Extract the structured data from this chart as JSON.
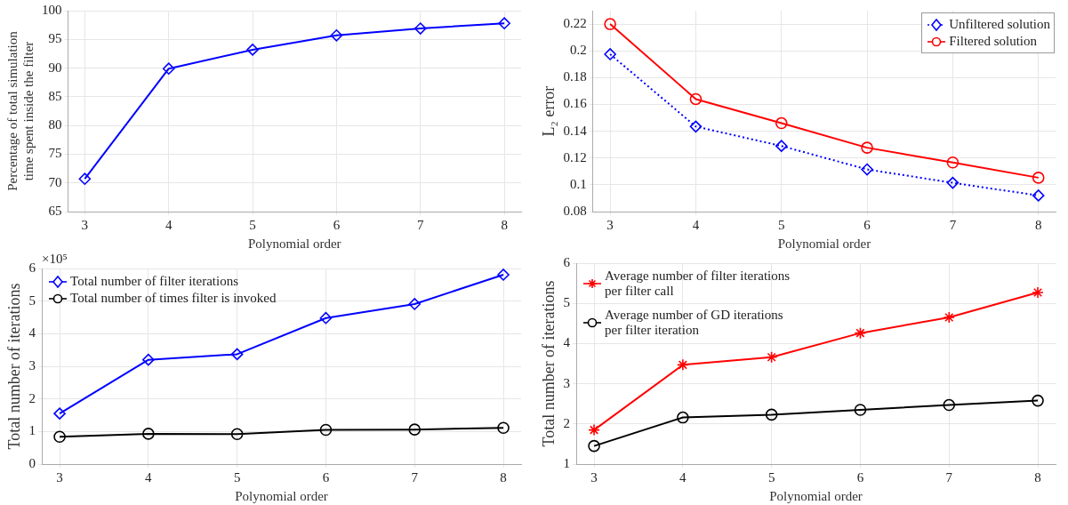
{
  "chart_data": [
    {
      "type": "line",
      "xlabel": "Polynomial order",
      "ylabel": "Percentage of total simulation\ntime spent inside the filter",
      "x": [
        3,
        4,
        5,
        6,
        7,
        8
      ],
      "xlim": [
        2.8,
        8.2
      ],
      "xticks": [
        3,
        4,
        5,
        6,
        7,
        8
      ],
      "ylim": [
        65,
        100
      ],
      "yticks": [
        65,
        70,
        75,
        80,
        85,
        90,
        95,
        100
      ],
      "grid": true,
      "legend": false,
      "marker": "diamond",
      "series": [
        {
          "color": "#0000ff",
          "values": [
            70.7,
            89.9,
            93.2,
            95.7,
            96.9,
            97.8
          ]
        }
      ]
    },
    {
      "type": "line",
      "xlabel": "Polynomial order",
      "ylabel": "L₂ error",
      "x": [
        3,
        4,
        5,
        6,
        7,
        8
      ],
      "xlim": [
        2.8,
        8.2
      ],
      "xticks": [
        3,
        4,
        5,
        6,
        7,
        8
      ],
      "ylim": [
        0.08,
        0.23
      ],
      "yticks": [
        0.08,
        0.1,
        0.12,
        0.14,
        0.16,
        0.18,
        0.2,
        0.22
      ],
      "grid": true,
      "legend": "top right",
      "series": [
        {
          "name": "Unfiltered solution",
          "color": "#0000ff",
          "marker": "diamond",
          "line_style": "dotted",
          "values": [
            0.1975,
            0.1435,
            0.129,
            0.1115,
            0.1015,
            0.092
          ]
        },
        {
          "name": "Filtered solution",
          "color": "#ff0000",
          "marker": "circle",
          "line_style": "solid",
          "values": [
            0.22,
            0.164,
            0.146,
            0.1277,
            0.1167,
            0.1053
          ]
        }
      ]
    },
    {
      "type": "line",
      "xlabel": "Polynomial order",
      "ylabel": "Total number of iterations",
      "annotations": [
        "×10⁵"
      ],
      "x": [
        3,
        4,
        5,
        6,
        7,
        8
      ],
      "xlim": [
        2.8,
        8.2
      ],
      "xticks": [
        3,
        4,
        5,
        6,
        7,
        8
      ],
      "ylim": [
        0,
        6
      ],
      "yticks": [
        0,
        1,
        2,
        3,
        4,
        5,
        6
      ],
      "grid": true,
      "legend": "top left",
      "series": [
        {
          "name": "Total number of filter iterations",
          "color": "#0000ff",
          "marker": "diamond",
          "values": [
            1.55,
            3.2,
            3.37,
            4.48,
            4.91,
            5.81
          ]
        },
        {
          "name": "Total number of times filter is invoked",
          "color": "#000000",
          "marker": "circle",
          "values": [
            0.84,
            0.93,
            0.92,
            1.05,
            1.06,
            1.11
          ]
        }
      ]
    },
    {
      "type": "line",
      "xlabel": "Polynomial order",
      "ylabel": "Total number of iterations",
      "x": [
        3,
        4,
        5,
        6,
        7,
        8
      ],
      "xlim": [
        2.8,
        8.2
      ],
      "xticks": [
        3,
        4,
        5,
        6,
        7,
        8
      ],
      "ylim": [
        1,
        6
      ],
      "yticks": [
        1,
        2,
        3,
        4,
        5,
        6
      ],
      "grid": true,
      "legend": "top left",
      "series": [
        {
          "name": "Average number of filter iterations per filter call",
          "color": "#ff0000",
          "marker": "cross",
          "values": [
            1.85,
            3.47,
            3.66,
            4.26,
            4.65,
            5.27
          ]
        },
        {
          "name": "Average number of GD iterations per filter iteration",
          "color": "#000000",
          "marker": "circle",
          "values": [
            1.45,
            2.16,
            2.23,
            2.35,
            2.47,
            2.58
          ]
        }
      ]
    }
  ]
}
